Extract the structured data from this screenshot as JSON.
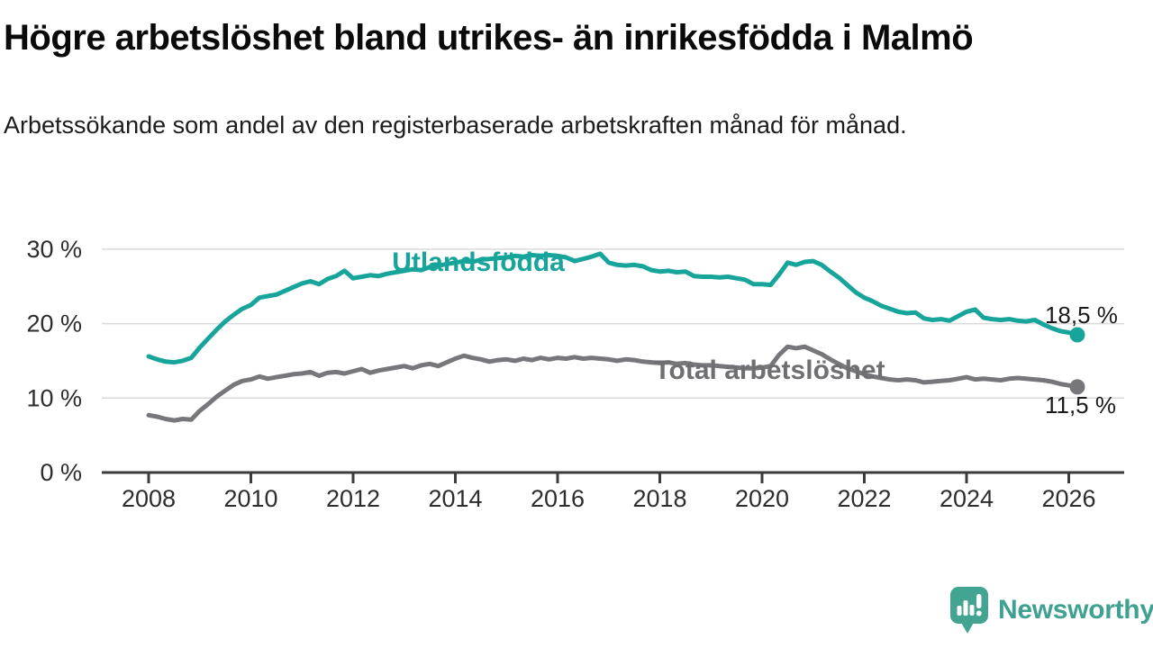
{
  "title": "Högre arbetslöshet bland utrikes- än inrikesfödda i Malmö",
  "subtitle": "Arbetssökande som andel av den registerbaserade arbetskraften månad för månad.",
  "branding": {
    "logo_text": "Newsworthy",
    "logo_icon": "newsworthy-speech-bubble-bar-chart-icon",
    "logo_color": "#43a492"
  },
  "colors": {
    "utlandsfodda_line": "#17a49a",
    "total_line": "#77777b",
    "total_label": "#6e6e73",
    "end_value_label": "#1a1a1a",
    "axis": "#3b3b3b",
    "tick_label": "#2d2d2d",
    "gridline": "#dadada"
  },
  "chart_data": {
    "type": "line",
    "title": "Högre arbetslöshet bland utrikes- än inrikesfödda i Malmö",
    "subtitle": "Arbetssökande som andel av den registerbaserade arbetskraften månad för månad.",
    "xlabel": "",
    "ylabel": "",
    "grid": "horizontal",
    "legend_position": "inline-annotations",
    "ylim": [
      0,
      30
    ],
    "xlim": [
      2007.0,
      2027.2
    ],
    "y_ticks": [
      0,
      10,
      20,
      30
    ],
    "y_tick_labels": [
      "0 %",
      "10 %",
      "20 %",
      "30 %"
    ],
    "x_ticks": [
      2008,
      2010,
      2012,
      2014,
      2016,
      2018,
      2020,
      2022,
      2024,
      2026
    ],
    "x_tick_labels": [
      "2008",
      "2010",
      "2012",
      "2014",
      "2016",
      "2018",
      "2020",
      "2022",
      "2024",
      "2026"
    ],
    "x_start": 2008.0,
    "x_step": 0.16667,
    "series": [
      {
        "name": "Utlandsfödda",
        "color": "#17a49a",
        "end_label": "18,5 %",
        "end_value": 18.5,
        "values": [
          15.6,
          15.2,
          14.9,
          14.8,
          15.0,
          15.4,
          16.8,
          18.0,
          19.2,
          20.3,
          21.2,
          22.0,
          22.5,
          23.5,
          23.7,
          23.9,
          24.4,
          24.9,
          25.4,
          25.7,
          25.3,
          26.0,
          26.4,
          27.1,
          26.1,
          26.3,
          26.5,
          26.4,
          26.7,
          26.9,
          27.1,
          27.3,
          27.2,
          27.6,
          27.8,
          28.0,
          28.2,
          28.4,
          28.3,
          28.6,
          28.7,
          28.8,
          28.9,
          29.1,
          29.0,
          29.2,
          29.1,
          29.2,
          29.1,
          28.9,
          28.4,
          28.7,
          29.0,
          29.4,
          28.2,
          27.9,
          27.8,
          27.9,
          27.7,
          27.2,
          27.0,
          27.1,
          26.9,
          27.0,
          26.4,
          26.3,
          26.3,
          26.2,
          26.3,
          26.1,
          25.9,
          25.3,
          25.3,
          25.2,
          26.6,
          28.2,
          27.9,
          28.3,
          28.4,
          27.9,
          27.0,
          26.2,
          25.2,
          24.2,
          23.5,
          23.0,
          22.4,
          22.0,
          21.6,
          21.4,
          21.5,
          20.7,
          20.5,
          20.6,
          20.4,
          21.0,
          21.6,
          21.9,
          20.8,
          20.6,
          20.5,
          20.6,
          20.4,
          20.3,
          20.5,
          19.9,
          19.4,
          19.0,
          18.8,
          18.5
        ]
      },
      {
        "name": "Total arbetslöshet",
        "color": "#77777b",
        "end_label": "11,5 %",
        "end_value": 11.5,
        "values": [
          7.7,
          7.5,
          7.2,
          7.0,
          7.2,
          7.1,
          8.3,
          9.2,
          10.2,
          11.0,
          11.8,
          12.3,
          12.5,
          12.9,
          12.6,
          12.8,
          13.0,
          13.2,
          13.3,
          13.5,
          13.0,
          13.4,
          13.5,
          13.3,
          13.6,
          13.9,
          13.4,
          13.7,
          13.9,
          14.1,
          14.3,
          14.0,
          14.4,
          14.6,
          14.3,
          14.8,
          15.3,
          15.7,
          15.4,
          15.2,
          14.9,
          15.1,
          15.2,
          15.0,
          15.3,
          15.1,
          15.4,
          15.2,
          15.4,
          15.3,
          15.5,
          15.3,
          15.4,
          15.3,
          15.2,
          15.0,
          15.2,
          15.1,
          14.9,
          14.8,
          14.7,
          14.8,
          14.6,
          14.7,
          14.5,
          14.4,
          14.4,
          14.3,
          14.2,
          14.1,
          14.0,
          14.0,
          14.1,
          14.3,
          15.8,
          16.9,
          16.7,
          16.9,
          16.4,
          15.9,
          15.2,
          14.6,
          14.0,
          13.6,
          13.2,
          12.9,
          12.7,
          12.5,
          12.4,
          12.5,
          12.4,
          12.1,
          12.2,
          12.3,
          12.4,
          12.6,
          12.8,
          12.5,
          12.6,
          12.5,
          12.4,
          12.6,
          12.7,
          12.6,
          12.5,
          12.4,
          12.2,
          11.9,
          11.7,
          11.5
        ]
      }
    ],
    "annotations": [
      {
        "text": "Utlandsfödda",
        "x": 2014.45,
        "y": 28.4,
        "color": "#17a49a"
      },
      {
        "text": "Total arbetslöshet",
        "x": 2020.15,
        "y": 13.9,
        "color": "#6e6e73"
      }
    ]
  }
}
